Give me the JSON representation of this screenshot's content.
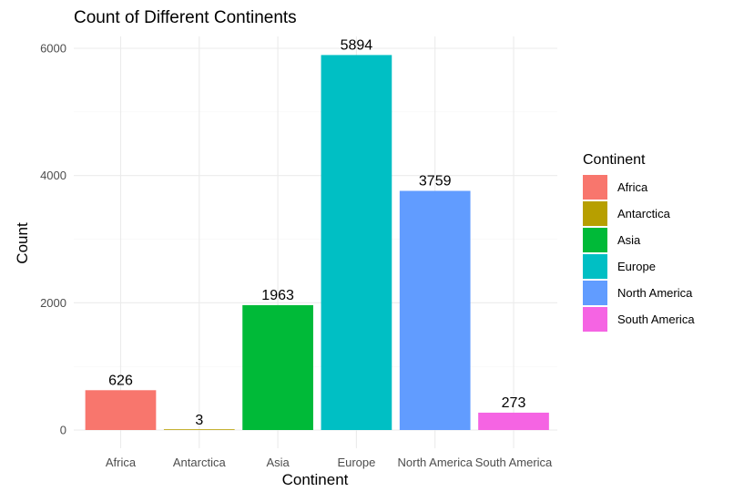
{
  "chart_data": {
    "type": "bar",
    "title": "Count of Different Continents",
    "xlabel": "Continent",
    "ylabel": "Count",
    "categories": [
      "Africa",
      "Antarctica",
      "Asia",
      "Europe",
      "North America",
      "South America"
    ],
    "values": [
      626,
      3,
      1963,
      5894,
      3759,
      273
    ],
    "colors": [
      "#F8766D",
      "#B79F00",
      "#00BA38",
      "#00BFC4",
      "#619CFF",
      "#F564E3"
    ],
    "yticks": [
      0,
      2000,
      4000,
      6000
    ],
    "ylim": [
      0,
      6000
    ],
    "grid": true,
    "legend": {
      "title": "Continent",
      "position": "right",
      "items": [
        "Africa",
        "Antarctica",
        "Asia",
        "Europe",
        "North America",
        "South America"
      ]
    }
  }
}
